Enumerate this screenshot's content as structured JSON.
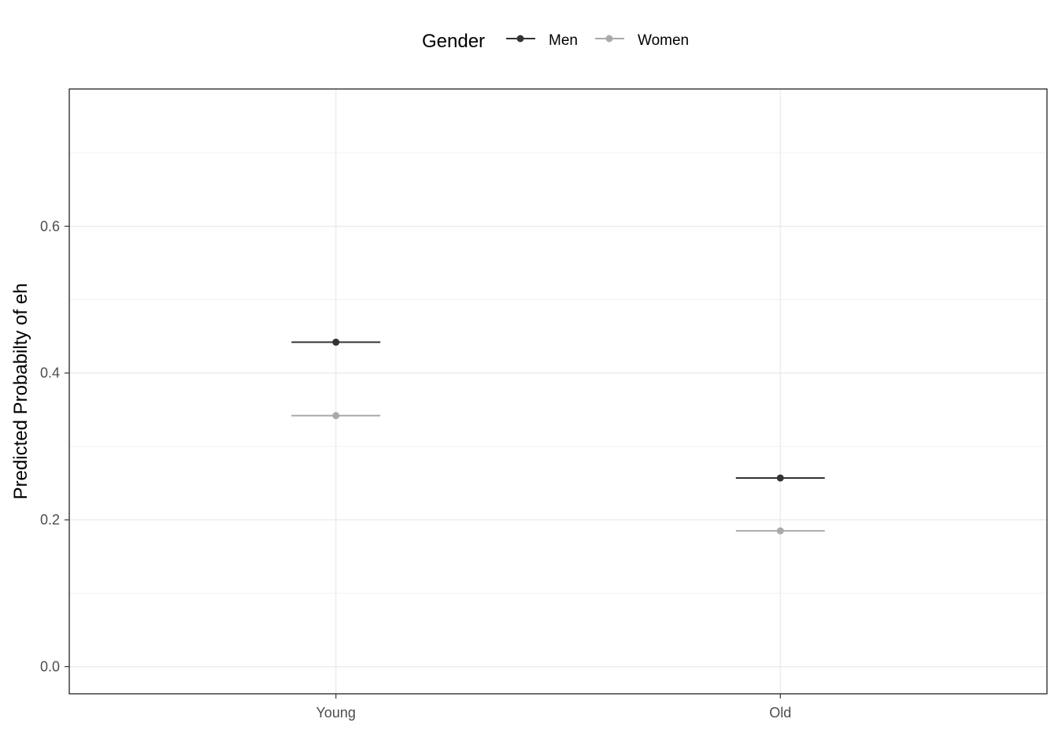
{
  "chart_data": {
    "type": "scatter",
    "title": "",
    "xlabel": "",
    "ylabel": "Predicted Probabilty of eh",
    "categories": [
      "Young",
      "Old"
    ],
    "ylim": [
      -0.037,
      0.787
    ],
    "yticks": [
      0.0,
      0.2,
      0.4,
      0.6
    ],
    "ytick_labels": [
      "0.0",
      "0.2",
      "0.4",
      "0.6"
    ],
    "grid": true,
    "legend": {
      "title": "Gender",
      "placement": "top"
    },
    "series": [
      {
        "name": "Men",
        "color": "#333333",
        "values": [
          0.442,
          0.257
        ]
      },
      {
        "name": "Women",
        "color": "#aaaaaa",
        "values": [
          0.342,
          0.185
        ]
      }
    ]
  }
}
